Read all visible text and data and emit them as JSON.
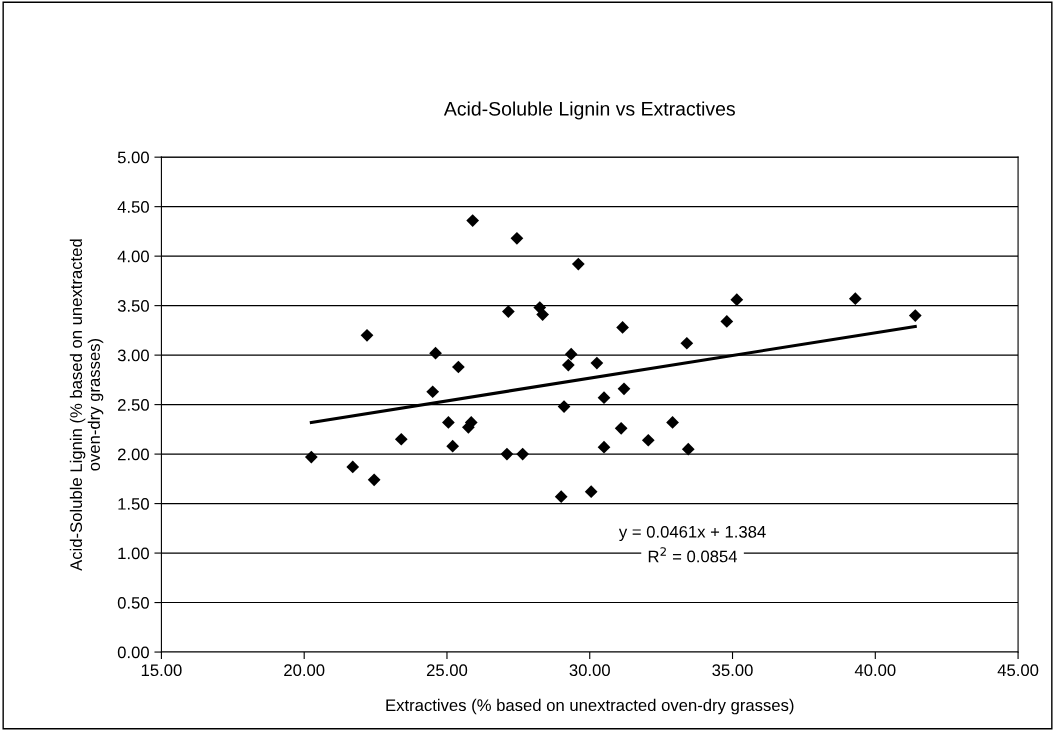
{
  "chart_data": {
    "type": "scatter",
    "title": "Acid-Soluble Lignin vs Extractives",
    "xlabel": "Extractives (% based on unextracted oven-dry grasses)",
    "ylabel": "Acid-Soluble Lignin (% based on unextracted\noven-dry grasses)",
    "xlim": [
      15,
      45
    ],
    "xticks": [
      {
        "value": 15,
        "label": "15.00"
      },
      {
        "value": 20,
        "label": "20.00"
      },
      {
        "value": 25,
        "label": "25.00"
      },
      {
        "value": 30,
        "label": "30.00"
      },
      {
        "value": 35,
        "label": "35.00"
      },
      {
        "value": 40,
        "label": "40.00"
      },
      {
        "value": 45,
        "label": "45.00"
      }
    ],
    "ylim": [
      0,
      5
    ],
    "yticks": [
      {
        "value": 0,
        "label": "0.00"
      },
      {
        "value": 0.5,
        "label": "0.50"
      },
      {
        "value": 1,
        "label": "1.00"
      },
      {
        "value": 1.5,
        "label": "1.50"
      },
      {
        "value": 2,
        "label": "2.00"
      },
      {
        "value": 2.5,
        "label": "2.50"
      },
      {
        "value": 3,
        "label": "3.00"
      },
      {
        "value": 3.5,
        "label": "3.50"
      },
      {
        "value": 4,
        "label": "4.00"
      },
      {
        "value": 4.5,
        "label": "4.50"
      },
      {
        "value": 5,
        "label": "5.00"
      }
    ],
    "grid": "y",
    "legend": false,
    "annotations": [
      "y = 0.0461x + 1.384",
      "R$^{2}$ = 0.0854"
    ],
    "series": [
      {
        "marker": "diamond",
        "color": "#000000",
        "x": [
          20.25,
          21.7,
          22.2,
          22.45,
          23.4,
          24.5,
          24.6,
          25.05,
          25.2,
          25.4,
          25.75,
          25.85,
          25.9,
          27.1,
          27.15,
          27.45,
          27.65,
          28.25,
          28.35,
          29.0,
          29.1,
          29.25,
          29.35,
          29.6,
          30.05,
          30.25,
          30.5,
          30.5,
          31.1,
          31.15,
          31.2,
          32.05,
          32.9,
          33.4,
          33.45,
          34.8,
          35.15,
          39.3,
          41.4
        ],
        "values": [
          1.97,
          1.87,
          3.2,
          1.74,
          2.15,
          2.63,
          3.02,
          2.32,
          2.08,
          2.88,
          2.27,
          2.32,
          4.36,
          2.0,
          3.44,
          4.18,
          2.0,
          3.48,
          3.41,
          1.57,
          2.48,
          2.9,
          3.01,
          3.92,
          1.62,
          2.92,
          2.57,
          2.07,
          2.26,
          3.28,
          2.66,
          2.14,
          2.32,
          3.12,
          2.05,
          3.34,
          3.56,
          3.57,
          3.4
        ]
      },
      {
        "type": "line",
        "color": "#000000",
        "x": [
          20.25,
          41.4
        ],
        "values": [
          2.32,
          3.29
        ]
      }
    ]
  }
}
